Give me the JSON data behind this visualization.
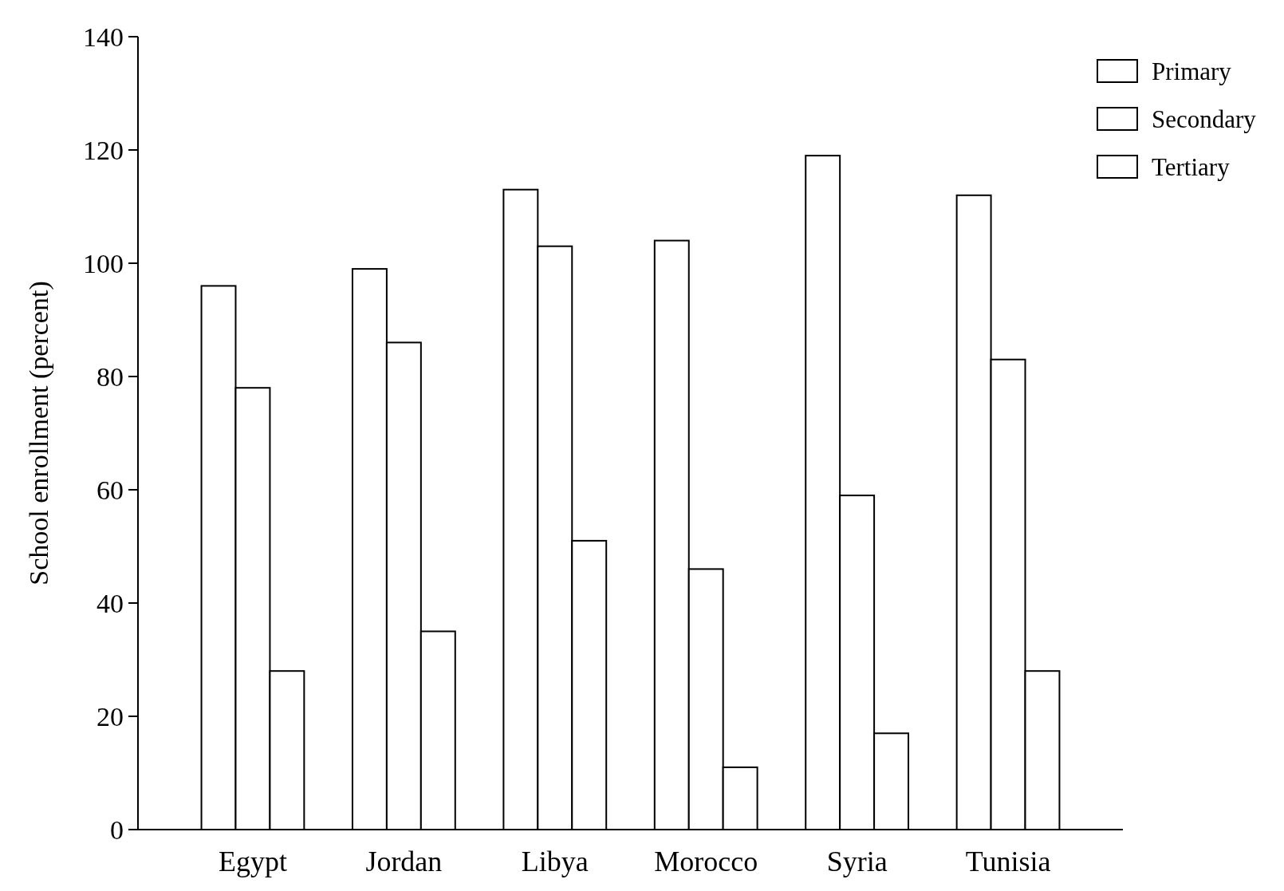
{
  "chart_data": {
    "type": "bar",
    "ylabel": "School enrollment (percent)",
    "categories": [
      "Egypt",
      "Jordan",
      "Libya",
      "Morocco",
      "Syria",
      "Tunisia"
    ],
    "series": [
      {
        "name": "Primary",
        "color": "#ffffff",
        "values": [
          96,
          99,
          113,
          104,
          119,
          112
        ]
      },
      {
        "name": "Secondary",
        "color": "#ffffff",
        "values": [
          78,
          86,
          103,
          46,
          59,
          83
        ]
      },
      {
        "name": "Tertiary",
        "color": "#ffffff",
        "values": [
          28,
          35,
          51,
          11,
          17,
          28
        ]
      }
    ],
    "ylim": [
      0,
      140
    ],
    "yticks": [
      0,
      20,
      40,
      60,
      80,
      100,
      120,
      140
    ],
    "grid": false,
    "legend": "top right"
  }
}
